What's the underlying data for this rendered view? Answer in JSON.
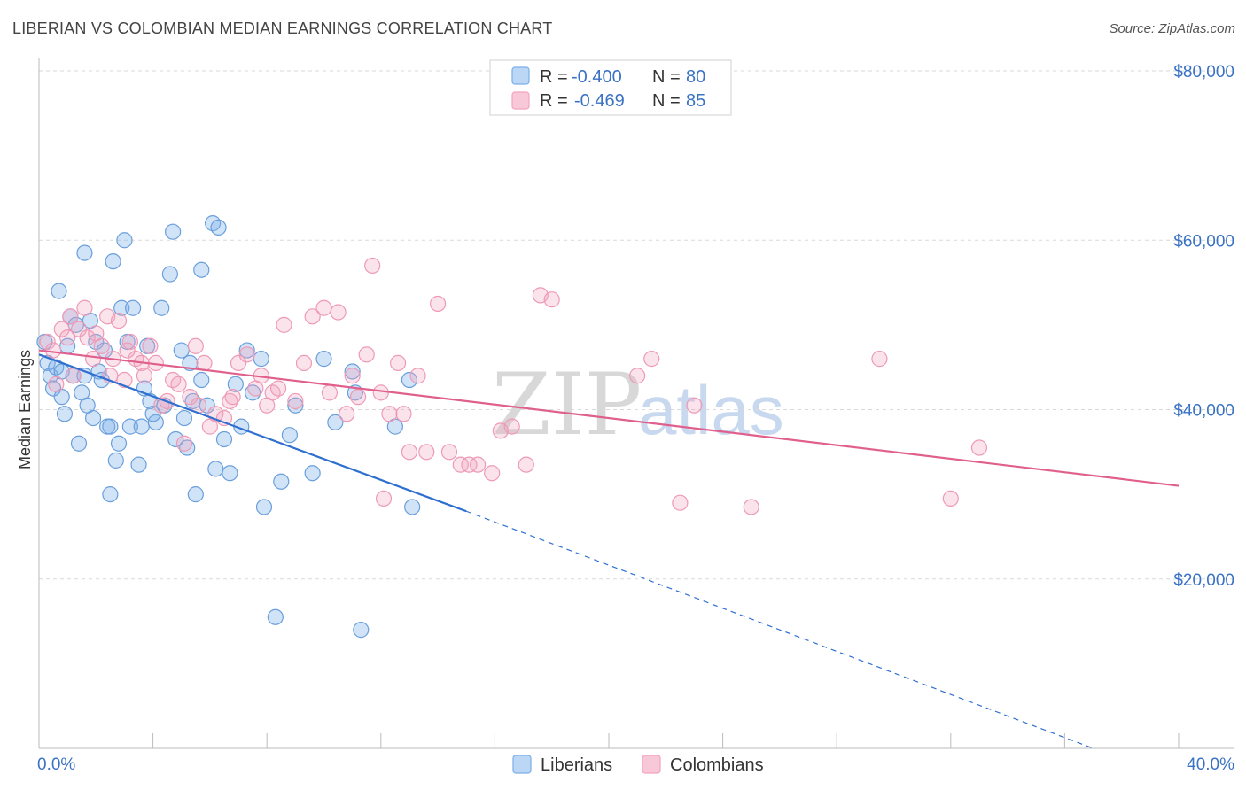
{
  "title": "LIBERIAN VS COLOMBIAN MEDIAN EARNINGS CORRELATION CHART",
  "source": "Source: ZipAtlas.com",
  "legend": {
    "series1": {
      "r_label": "R =",
      "r_value": "-0.400",
      "n_label": "N =",
      "n_value": "80"
    },
    "series2": {
      "r_label": "R =",
      "r_value": "-0.469",
      "n_label": "N =",
      "n_value": "85"
    }
  },
  "bottom_legend": {
    "liberians": "Liberians",
    "colombians": "Colombians"
  },
  "watermark": {
    "zip": "ZIP",
    "atlas": "atlas"
  },
  "colors": {
    "liberians": "#7aaee8",
    "colombians": "#f2a3bd",
    "liberians_line": "#2f6fd0",
    "colombians_line": "#e0608d",
    "axis_text": "#3a72c4"
  },
  "chart_data": {
    "type": "scatter",
    "xlabel": "",
    "ylabel": "Median Earnings",
    "xlim": [
      0,
      40
    ],
    "ylim": [
      0,
      80000
    ],
    "x_tick_labels": [
      "0.0%",
      "40.0%"
    ],
    "y_ticks": [
      20000,
      40000,
      60000,
      80000
    ],
    "y_tick_labels": [
      "$20,000",
      "$40,000",
      "$60,000",
      "$80,000"
    ],
    "grid": true,
    "legend_position": "top-center",
    "series": [
      {
        "name": "Liberians",
        "color": "#7aaee8",
        "trend": {
          "x0": 0,
          "y0": 46500,
          "x1": 15,
          "y1": 28000,
          "dashed_to_x": 37,
          "dashed_to_y": 0
        },
        "points": [
          [
            0.2,
            48000
          ],
          [
            0.3,
            45500
          ],
          [
            0.4,
            44000
          ],
          [
            0.5,
            42500
          ],
          [
            0.6,
            45000
          ],
          [
            0.7,
            54000
          ],
          [
            0.8,
            44500
          ],
          [
            0.8,
            41500
          ],
          [
            0.9,
            39500
          ],
          [
            1.0,
            47500
          ],
          [
            1.1,
            51000
          ],
          [
            1.2,
            44000
          ],
          [
            1.3,
            50000
          ],
          [
            1.4,
            36000
          ],
          [
            1.5,
            42000
          ],
          [
            1.6,
            44000
          ],
          [
            1.6,
            58500
          ],
          [
            1.7,
            40500
          ],
          [
            1.8,
            50500
          ],
          [
            1.9,
            39000
          ],
          [
            2.0,
            48000
          ],
          [
            2.1,
            44500
          ],
          [
            2.2,
            43500
          ],
          [
            2.3,
            47000
          ],
          [
            2.4,
            38000
          ],
          [
            2.5,
            38000
          ],
          [
            2.6,
            57500
          ],
          [
            2.7,
            34000
          ],
          [
            2.8,
            36000
          ],
          [
            2.9,
            52000
          ],
          [
            3.0,
            60000
          ],
          [
            3.1,
            48000
          ],
          [
            3.2,
            38000
          ],
          [
            3.3,
            52000
          ],
          [
            3.5,
            33500
          ],
          [
            3.6,
            38000
          ],
          [
            3.7,
            42500
          ],
          [
            3.8,
            47500
          ],
          [
            3.9,
            41000
          ],
          [
            4.1,
            38500
          ],
          [
            4.3,
            52000
          ],
          [
            4.4,
            40500
          ],
          [
            4.6,
            56000
          ],
          [
            4.7,
            61000
          ],
          [
            4.8,
            36500
          ],
          [
            5.0,
            47000
          ],
          [
            5.1,
            39000
          ],
          [
            5.2,
            35500
          ],
          [
            5.3,
            45500
          ],
          [
            5.4,
            41000
          ],
          [
            5.5,
            30000
          ],
          [
            5.7,
            43500
          ],
          [
            5.7,
            56500
          ],
          [
            5.9,
            40500
          ],
          [
            6.1,
            62000
          ],
          [
            6.2,
            33000
          ],
          [
            6.3,
            61500
          ],
          [
            6.5,
            36500
          ],
          [
            6.7,
            32500
          ],
          [
            6.9,
            43000
          ],
          [
            7.1,
            38000
          ],
          [
            7.3,
            47000
          ],
          [
            7.5,
            42000
          ],
          [
            7.9,
            28500
          ],
          [
            7.8,
            46000
          ],
          [
            8.3,
            15500
          ],
          [
            8.5,
            31500
          ],
          [
            8.8,
            37000
          ],
          [
            9.0,
            40500
          ],
          [
            9.6,
            32500
          ],
          [
            10.0,
            46000
          ],
          [
            10.4,
            38500
          ],
          [
            11.0,
            44500
          ],
          [
            11.1,
            42000
          ],
          [
            11.3,
            14000
          ],
          [
            12.5,
            38000
          ],
          [
            13.0,
            43500
          ],
          [
            13.1,
            28500
          ],
          [
            2.5,
            30000
          ],
          [
            4.0,
            39500
          ]
        ]
      },
      {
        "name": "Colombians",
        "color": "#f2a3bd",
        "trend": {
          "x0": 0,
          "y0": 47000,
          "x1": 40,
          "y1": 31000
        },
        "points": [
          [
            0.3,
            48000
          ],
          [
            0.5,
            47000
          ],
          [
            0.6,
            43000
          ],
          [
            0.8,
            49500
          ],
          [
            1.0,
            48500
          ],
          [
            1.1,
            51000
          ],
          [
            1.2,
            44000
          ],
          [
            1.4,
            49500
          ],
          [
            1.6,
            52000
          ],
          [
            1.7,
            48500
          ],
          [
            1.9,
            46000
          ],
          [
            2.0,
            49000
          ],
          [
            2.2,
            47500
          ],
          [
            2.4,
            51000
          ],
          [
            2.5,
            44000
          ],
          [
            2.6,
            46000
          ],
          [
            2.8,
            50500
          ],
          [
            3.0,
            43500
          ],
          [
            3.2,
            48000
          ],
          [
            3.4,
            46000
          ],
          [
            3.6,
            45500
          ],
          [
            3.7,
            44000
          ],
          [
            3.9,
            47500
          ],
          [
            4.1,
            45500
          ],
          [
            4.3,
            40500
          ],
          [
            4.5,
            41000
          ],
          [
            4.7,
            43500
          ],
          [
            4.9,
            43000
          ],
          [
            5.1,
            36000
          ],
          [
            5.3,
            41500
          ],
          [
            5.5,
            47500
          ],
          [
            5.6,
            40500
          ],
          [
            5.8,
            45500
          ],
          [
            6.0,
            38000
          ],
          [
            6.2,
            39500
          ],
          [
            6.5,
            39000
          ],
          [
            6.7,
            41000
          ],
          [
            6.8,
            41500
          ],
          [
            7.0,
            45500
          ],
          [
            7.3,
            46500
          ],
          [
            7.6,
            42500
          ],
          [
            7.8,
            44000
          ],
          [
            8.0,
            40500
          ],
          [
            8.2,
            42000
          ],
          [
            8.4,
            42500
          ],
          [
            8.6,
            50000
          ],
          [
            9.0,
            41000
          ],
          [
            9.3,
            45500
          ],
          [
            9.6,
            51000
          ],
          [
            10.0,
            52000
          ],
          [
            10.2,
            42000
          ],
          [
            10.5,
            51500
          ],
          [
            10.8,
            39500
          ],
          [
            11.0,
            44000
          ],
          [
            11.2,
            41500
          ],
          [
            11.5,
            46500
          ],
          [
            11.7,
            57000
          ],
          [
            12.0,
            42000
          ],
          [
            12.3,
            39500
          ],
          [
            12.6,
            45500
          ],
          [
            12.8,
            39500
          ],
          [
            13.0,
            35000
          ],
          [
            13.3,
            44000
          ],
          [
            13.6,
            35000
          ],
          [
            14.0,
            52500
          ],
          [
            14.4,
            35000
          ],
          [
            14.8,
            33500
          ],
          [
            15.1,
            33500
          ],
          [
            15.4,
            33500
          ],
          [
            15.9,
            32500
          ],
          [
            16.2,
            37500
          ],
          [
            16.6,
            38000
          ],
          [
            17.1,
            33500
          ],
          [
            17.6,
            53500
          ],
          [
            18.0,
            53000
          ],
          [
            21.0,
            44000
          ],
          [
            21.5,
            46000
          ],
          [
            22.5,
            29000
          ],
          [
            23.0,
            40500
          ],
          [
            25.0,
            28500
          ],
          [
            29.5,
            46000
          ],
          [
            32.0,
            29500
          ],
          [
            33.0,
            35500
          ],
          [
            3.1,
            47000
          ],
          [
            12.1,
            29500
          ]
        ]
      }
    ]
  }
}
